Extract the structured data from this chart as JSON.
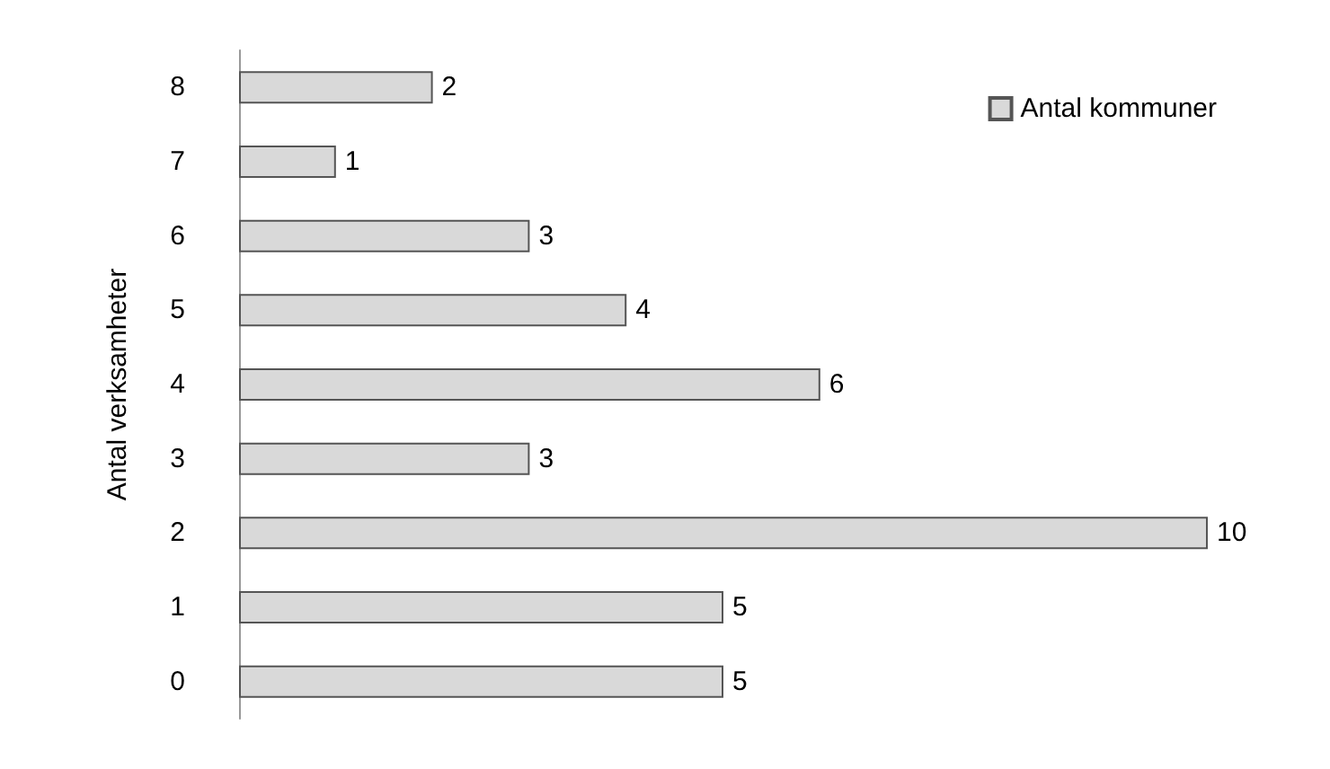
{
  "chart_data": {
    "type": "bar",
    "orientation": "horizontal",
    "ylabel": "Antal verksamheter",
    "categories": [
      "8",
      "7",
      "6",
      "5",
      "4",
      "3",
      "2",
      "1",
      "0"
    ],
    "series": [
      {
        "name": "Antal kommuner",
        "color": "#d9d9d9",
        "values": [
          2,
          1,
          3,
          4,
          6,
          3,
          10,
          5,
          5
        ]
      }
    ],
    "data_labels": true,
    "legend": "top right"
  }
}
